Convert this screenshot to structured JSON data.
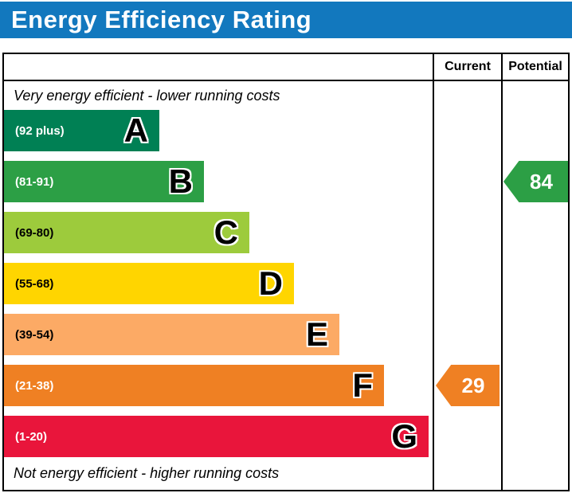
{
  "title": "Energy Efficiency Rating",
  "header": {
    "current": "Current",
    "potential": "Potential"
  },
  "notes": {
    "top": "Very energy efficient - lower running costs",
    "bottom": "Not energy efficient - higher running costs"
  },
  "colors": {
    "title_bar": "#1278be",
    "border": "#000000"
  },
  "chart_data": {
    "type": "bar",
    "title": "Energy Efficiency Rating",
    "bands": [
      {
        "letter": "A",
        "range": "(92 plus)",
        "min": 92,
        "max": 100,
        "color": "#008054",
        "text_color": "#ffffff"
      },
      {
        "letter": "B",
        "range": "(81-91)",
        "min": 81,
        "max": 91,
        "color": "#2c9f45",
        "text_color": "#ffffff"
      },
      {
        "letter": "C",
        "range": "(69-80)",
        "min": 69,
        "max": 80,
        "color": "#9dcb3c",
        "text_color": "#000000"
      },
      {
        "letter": "D",
        "range": "(55-68)",
        "min": 55,
        "max": 68,
        "color": "#ffd500",
        "text_color": "#000000"
      },
      {
        "letter": "E",
        "range": "(39-54)",
        "min": 39,
        "max": 54,
        "color": "#fcaa65",
        "text_color": "#000000"
      },
      {
        "letter": "F",
        "range": "(21-38)",
        "min": 21,
        "max": 38,
        "color": "#ef8023",
        "text_color": "#ffffff"
      },
      {
        "letter": "G",
        "range": "(1-20)",
        "min": 1,
        "max": 20,
        "color": "#e9153b",
        "text_color": "#ffffff"
      }
    ],
    "current": {
      "value": 29,
      "band": "F",
      "band_index": 5,
      "color": "#ef8023"
    },
    "potential": {
      "value": 84,
      "band": "B",
      "band_index": 1,
      "color": "#2c9f45"
    }
  }
}
